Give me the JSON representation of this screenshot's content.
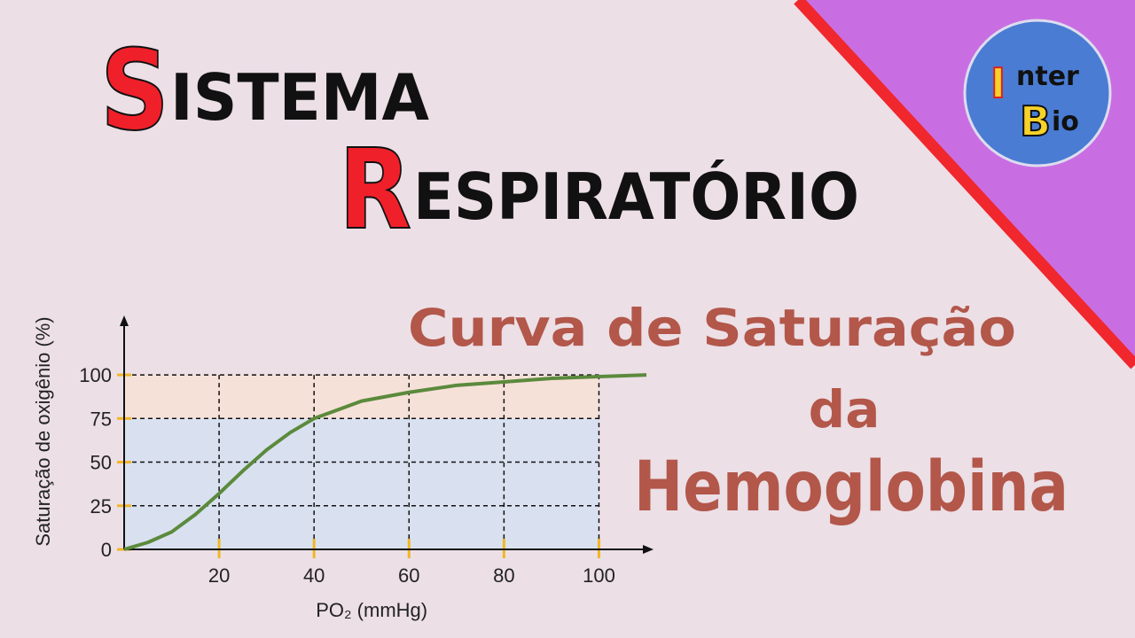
{
  "header": {
    "lines": [
      {
        "initial": "S",
        "rest": "ISTEMA"
      },
      {
        "initial": "R",
        "rest": "ESPIRATÓRIO"
      }
    ],
    "subtitle": [
      "Curva de Saturação",
      "da",
      "Hemoglobina"
    ]
  },
  "logo": [
    {
      "initial": "I",
      "rest": "nter"
    },
    {
      "initial": "B",
      "rest": "io"
    }
  ],
  "chart_data": {
    "type": "line",
    "x_label": "PO₂ (mmHg)",
    "y_label": "Saturação de oxigênio (%)",
    "x": [
      0,
      5,
      10,
      15,
      20,
      25,
      30,
      35,
      40,
      50,
      60,
      70,
      80,
      90,
      100,
      110
    ],
    "series": [
      {
        "color": "#5b8a3c",
        "values": [
          0,
          4,
          10,
          20,
          32,
          45,
          57,
          67,
          75,
          85,
          90,
          94,
          96,
          98,
          99,
          100
        ]
      }
    ],
    "xlim": [
      0,
      110
    ],
    "ylim": [
      0,
      130
    ],
    "xticks": [
      20,
      40,
      60,
      80,
      100
    ],
    "yticks": [
      0,
      25,
      50,
      75,
      100
    ],
    "grid": true
  }
}
